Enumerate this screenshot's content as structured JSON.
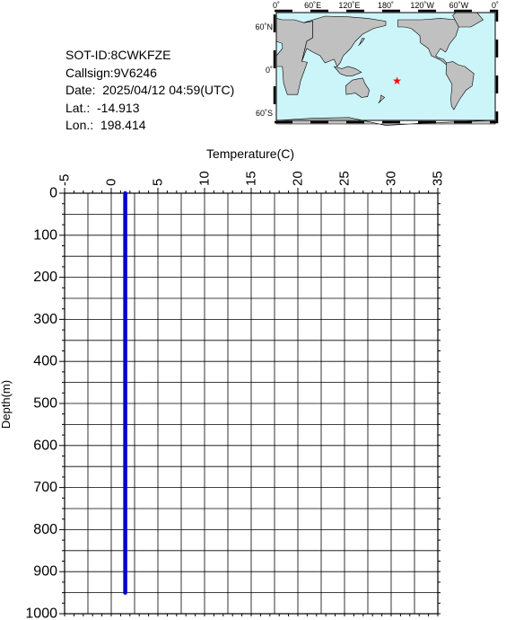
{
  "info": {
    "sot_id": "SOT-ID:8CWKFZE",
    "callsign": "Callsign:9V6246",
    "date": "Date:  2025/04/12 04:59(UTC)",
    "lat": "Lat.:  -14.913",
    "lon": "Lon.:  198.414"
  },
  "map": {
    "lon_labels": [
      "0˚",
      "60˚E",
      "120˚E",
      "180˚",
      "120˚W",
      "60˚W",
      "0˚"
    ],
    "lat_labels": [
      "60˚N",
      "0˚",
      "60˚S"
    ],
    "marker": {
      "lat": -14.913,
      "lon": 198.414,
      "symbol": "★",
      "color": "#ff0000"
    },
    "ocean_color": "#ccf5fa",
    "land_color": "#c0c0c0"
  },
  "chart_data": {
    "type": "line",
    "xlabel": "Temperature(C)",
    "ylabel": "Depth(m)",
    "xlim": [
      -5,
      35
    ],
    "ylim": [
      0,
      1000
    ],
    "y_inverted": true,
    "x_axis_position": "top",
    "x_ticks": [
      "-5",
      "0",
      "5",
      "10",
      "15",
      "20",
      "25",
      "30",
      "35"
    ],
    "y_ticks": [
      "0",
      "100",
      "200",
      "300",
      "400",
      "500",
      "600",
      "700",
      "800",
      "900",
      "1000"
    ],
    "grid": true,
    "series": [
      {
        "color": "#0000cc",
        "points": [
          {
            "temperature": 1.5,
            "depth": 0
          },
          {
            "temperature": 1.5,
            "depth": 950
          }
        ]
      }
    ]
  }
}
